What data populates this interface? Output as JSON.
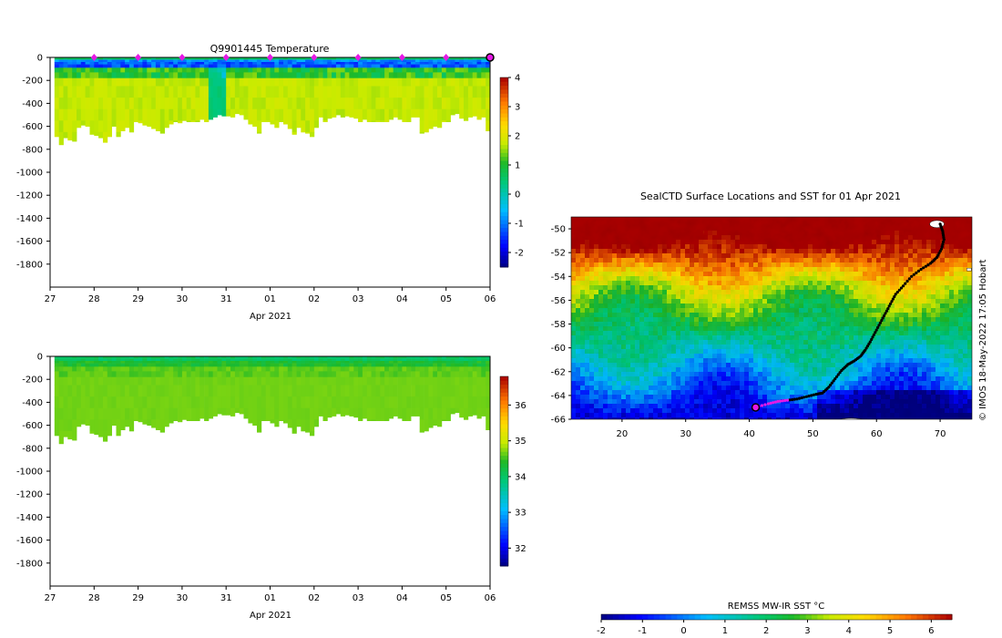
{
  "chart_data": [
    {
      "type": "heatmap",
      "title": "Q9901445  Temperature",
      "xlabel": "Apr 2021",
      "x_ticks": [
        "27",
        "28",
        "29",
        "30",
        "31",
        "01",
        "02",
        "03",
        "04",
        "05",
        "06"
      ],
      "xlim": [
        27,
        37
      ],
      "ylim": [
        -2000,
        0
      ],
      "y_ticks": [
        0,
        -200,
        -400,
        -600,
        -800,
        -1000,
        -1200,
        -1400,
        -1600,
        -1800
      ],
      "colorbar": {
        "min": -2.5,
        "max": 4,
        "ticks": [
          -2,
          -1,
          0,
          1,
          2,
          3,
          4
        ]
      },
      "surfacing_markers": [
        28,
        29,
        30,
        31,
        32,
        33,
        34,
        35,
        36
      ],
      "profile_max_depth": [
        0,
        -690,
        -760,
        -700,
        -720,
        -730,
        -610,
        -590,
        -600,
        -670,
        -680,
        -700,
        -740,
        -690,
        -600,
        -690,
        -640,
        -610,
        -650,
        -560,
        -570,
        -590,
        -600,
        -620,
        -640,
        -660,
        -610,
        -580,
        -560,
        -570,
        -550,
        -560,
        -560,
        -560,
        -540,
        -560,
        -540,
        -520,
        -500,
        -510,
        -510,
        -520,
        -490,
        -500,
        -540,
        -580,
        -600,
        -660,
        -560,
        -560,
        -580,
        -610,
        -560,
        -580,
        -620,
        -670,
        -610,
        -650,
        -660,
        -690,
        -610,
        -520,
        -560,
        -530,
        -520,
        -500,
        -520,
        -510,
        -520,
        -530,
        -560,
        -540,
        -560,
        -560,
        -560,
        -560,
        -560,
        -540,
        -520,
        -540,
        -560,
        -560,
        -520,
        -520,
        -660,
        -650,
        -620,
        -600,
        -610,
        -560,
        -560,
        -500,
        -490,
        -530,
        -550,
        -520,
        -510,
        -540,
        -520,
        -640
      ]
    },
    {
      "type": "heatmap",
      "title": "",
      "xlabel": "Apr 2021",
      "x_ticks": [
        "27",
        "28",
        "29",
        "30",
        "31",
        "01",
        "02",
        "03",
        "04",
        "05",
        "06"
      ],
      "xlim": [
        27,
        37
      ],
      "ylim": [
        -2000,
        0
      ],
      "y_ticks": [
        0,
        -200,
        -400,
        -600,
        -800,
        -1000,
        -1200,
        -1400,
        -1600,
        -1800
      ],
      "colorbar": {
        "min": 31.5,
        "max": 36.8,
        "ticks": [
          32,
          33,
          34,
          35,
          36
        ]
      }
    },
    {
      "type": "heatmap",
      "title": "SealCTD Surface Locations and SST for 01 Apr 2021",
      "xlim": [
        12,
        75
      ],
      "ylim": [
        -66,
        -49
      ],
      "x_ticks": [
        20,
        30,
        40,
        50,
        60,
        70
      ],
      "y_ticks": [
        -50,
        -52,
        -54,
        -56,
        -58,
        -60,
        -62,
        -64,
        -66
      ],
      "colorbar": {
        "label": "REMSS MW-IR SST °C",
        "min": -2,
        "max": 6.5,
        "ticks": [
          -2,
          -1,
          0,
          1,
          2,
          3,
          4,
          5,
          6
        ]
      },
      "track_lon": [
        70,
        70.4,
        70.6,
        70.2,
        69.5,
        68.5,
        67,
        65.5,
        64.2,
        63,
        62.2,
        61.4,
        60.6,
        59.8,
        59,
        58.2,
        57.5,
        56.5,
        55.5,
        54.5,
        53.5,
        52.5,
        51.5,
        50.5,
        49,
        47.5,
        46,
        44.5,
        43,
        41
      ],
      "track_lat": [
        -49.6,
        -50.2,
        -50.9,
        -51.7,
        -52.4,
        -52.9,
        -53.4,
        -54,
        -54.8,
        -55.5,
        -56.3,
        -57.1,
        -57.9,
        -58.7,
        -59.5,
        -60.2,
        -60.7,
        -61.1,
        -61.4,
        -61.9,
        -62.6,
        -63.3,
        -63.8,
        -63.9,
        -64.1,
        -64.3,
        -64.4,
        -64.5,
        -64.7,
        -65
      ]
    }
  ],
  "annotations": {
    "watermark": "© IMOS 18-May-2022 17:05 Hobart"
  }
}
